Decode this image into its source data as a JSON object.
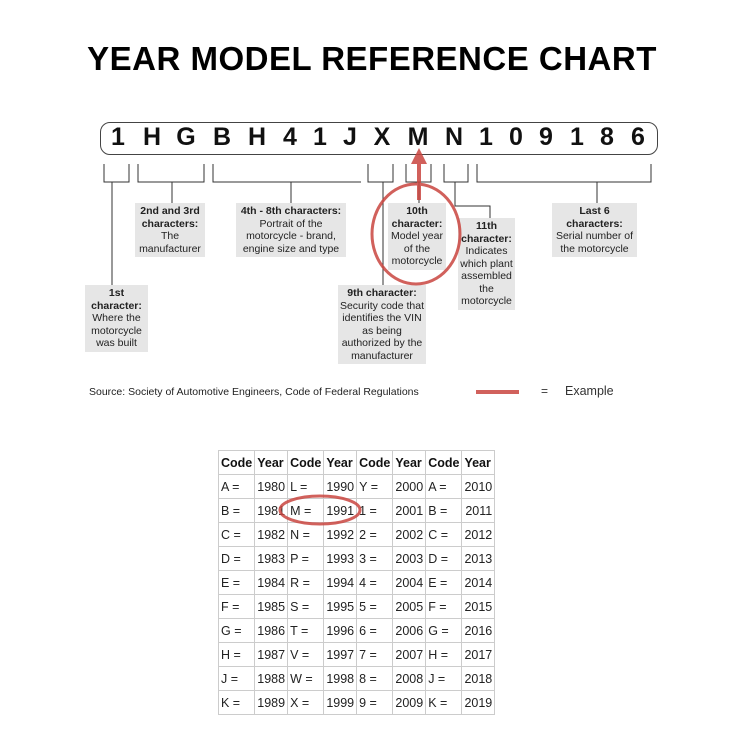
{
  "title": "YEAR MODEL REFERENCE CHART",
  "vin": [
    "1",
    "H",
    "G",
    "B",
    "H",
    "4",
    "1",
    "J",
    "X",
    "M",
    "N",
    "1",
    "0",
    "9",
    "1",
    "8",
    "6"
  ],
  "labels": {
    "first": {
      "head": "1st character:",
      "body": "Where the motorcycle was built"
    },
    "second": {
      "head": "2nd and 3rd characters:",
      "body": "The manufacturer"
    },
    "fourth": {
      "head": "4th - 8th characters:",
      "body": "Portrait of the motorcycle - brand, engine size and type"
    },
    "ninth": {
      "head": "9th character:",
      "body": "Security code that identifies the VIN as being authorized by the manufacturer"
    },
    "tenth": {
      "head": "10th character:",
      "body": "Model year of the motorcycle"
    },
    "eleventh": {
      "head": "11th character:",
      "body": "Indicates which plant assembled the motorcycle"
    },
    "last": {
      "head": "Last 6 characters:",
      "body": "Serial number of the motorcycle"
    }
  },
  "source": "Source:  Society of Automotive Engineers, Code of Federal Regulations",
  "legend": {
    "equals": "=",
    "label": "Example",
    "color": "#d9534f"
  },
  "table": {
    "headers": [
      "Code",
      "Year",
      "Code",
      "Year",
      "Code",
      "Year",
      "Code",
      "Year"
    ],
    "rows": [
      [
        "A =",
        "1980",
        "L =",
        "1990",
        "Y =",
        "2000",
        "A =",
        "2010"
      ],
      [
        "B =",
        "1981",
        "M =",
        "1991",
        "1 =",
        "2001",
        "B =",
        "2011"
      ],
      [
        "C =",
        "1982",
        "N =",
        "1992",
        "2 =",
        "2002",
        "C =",
        "2012"
      ],
      [
        "D =",
        "1983",
        "P =",
        "1993",
        "3 =",
        "2003",
        "D =",
        "2013"
      ],
      [
        "E =",
        "1984",
        "R =",
        "1994",
        "4 =",
        "2004",
        "E =",
        "2014"
      ],
      [
        "F =",
        "1985",
        "S =",
        "1995",
        "5 =",
        "2005",
        "F =",
        "2015"
      ],
      [
        "G =",
        "1986",
        "T =",
        "1996",
        "6 =",
        "2006",
        "G =",
        "2016"
      ],
      [
        "H =",
        "1987",
        "V =",
        "1997",
        "7 =",
        "2007",
        "H =",
        "2017"
      ],
      [
        "J =",
        "1988",
        "W =",
        "1998",
        "8 =",
        "2008",
        "J =",
        "2018"
      ],
      [
        "K =",
        "1989",
        "X =",
        "1999",
        "9 =",
        "2009",
        "K =",
        "2019"
      ]
    ]
  }
}
